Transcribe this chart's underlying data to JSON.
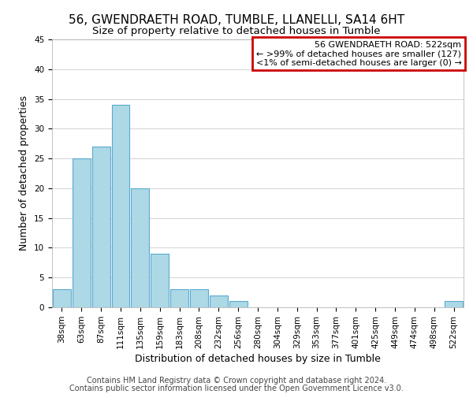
{
  "title": "56, GWENDRAETH ROAD, TUMBLE, LLANELLI, SA14 6HT",
  "subtitle": "Size of property relative to detached houses in Tumble",
  "xlabel": "Distribution of detached houses by size in Tumble",
  "ylabel": "Number of detached properties",
  "categories": [
    "38sqm",
    "63sqm",
    "87sqm",
    "111sqm",
    "135sqm",
    "159sqm",
    "183sqm",
    "208sqm",
    "232sqm",
    "256sqm",
    "280sqm",
    "304sqm",
    "329sqm",
    "353sqm",
    "377sqm",
    "401sqm",
    "425sqm",
    "449sqm",
    "474sqm",
    "498sqm",
    "522sqm"
  ],
  "values": [
    3,
    25,
    27,
    34,
    20,
    9,
    3,
    3,
    2,
    1,
    0,
    0,
    0,
    0,
    0,
    0,
    0,
    0,
    0,
    0,
    1
  ],
  "bar_color": "#add8e6",
  "bar_edge_color": "#5aaad0",
  "ylim": [
    0,
    45
  ],
  "yticks": [
    0,
    5,
    10,
    15,
    20,
    25,
    30,
    35,
    40,
    45
  ],
  "legend_title": "56 GWENDRAETH ROAD: 522sqm",
  "legend_line1": "← >99% of detached houses are smaller (127)",
  "legend_line2": "<1% of semi-detached houses are larger (0) →",
  "legend_border_color": "#cc0000",
  "footer1": "Contains HM Land Registry data © Crown copyright and database right 2024.",
  "footer2": "Contains public sector information licensed under the Open Government Licence v3.0.",
  "title_fontsize": 11,
  "subtitle_fontsize": 9.5,
  "axis_label_fontsize": 9,
  "tick_fontsize": 7.5,
  "legend_fontsize": 8,
  "footer_fontsize": 7
}
